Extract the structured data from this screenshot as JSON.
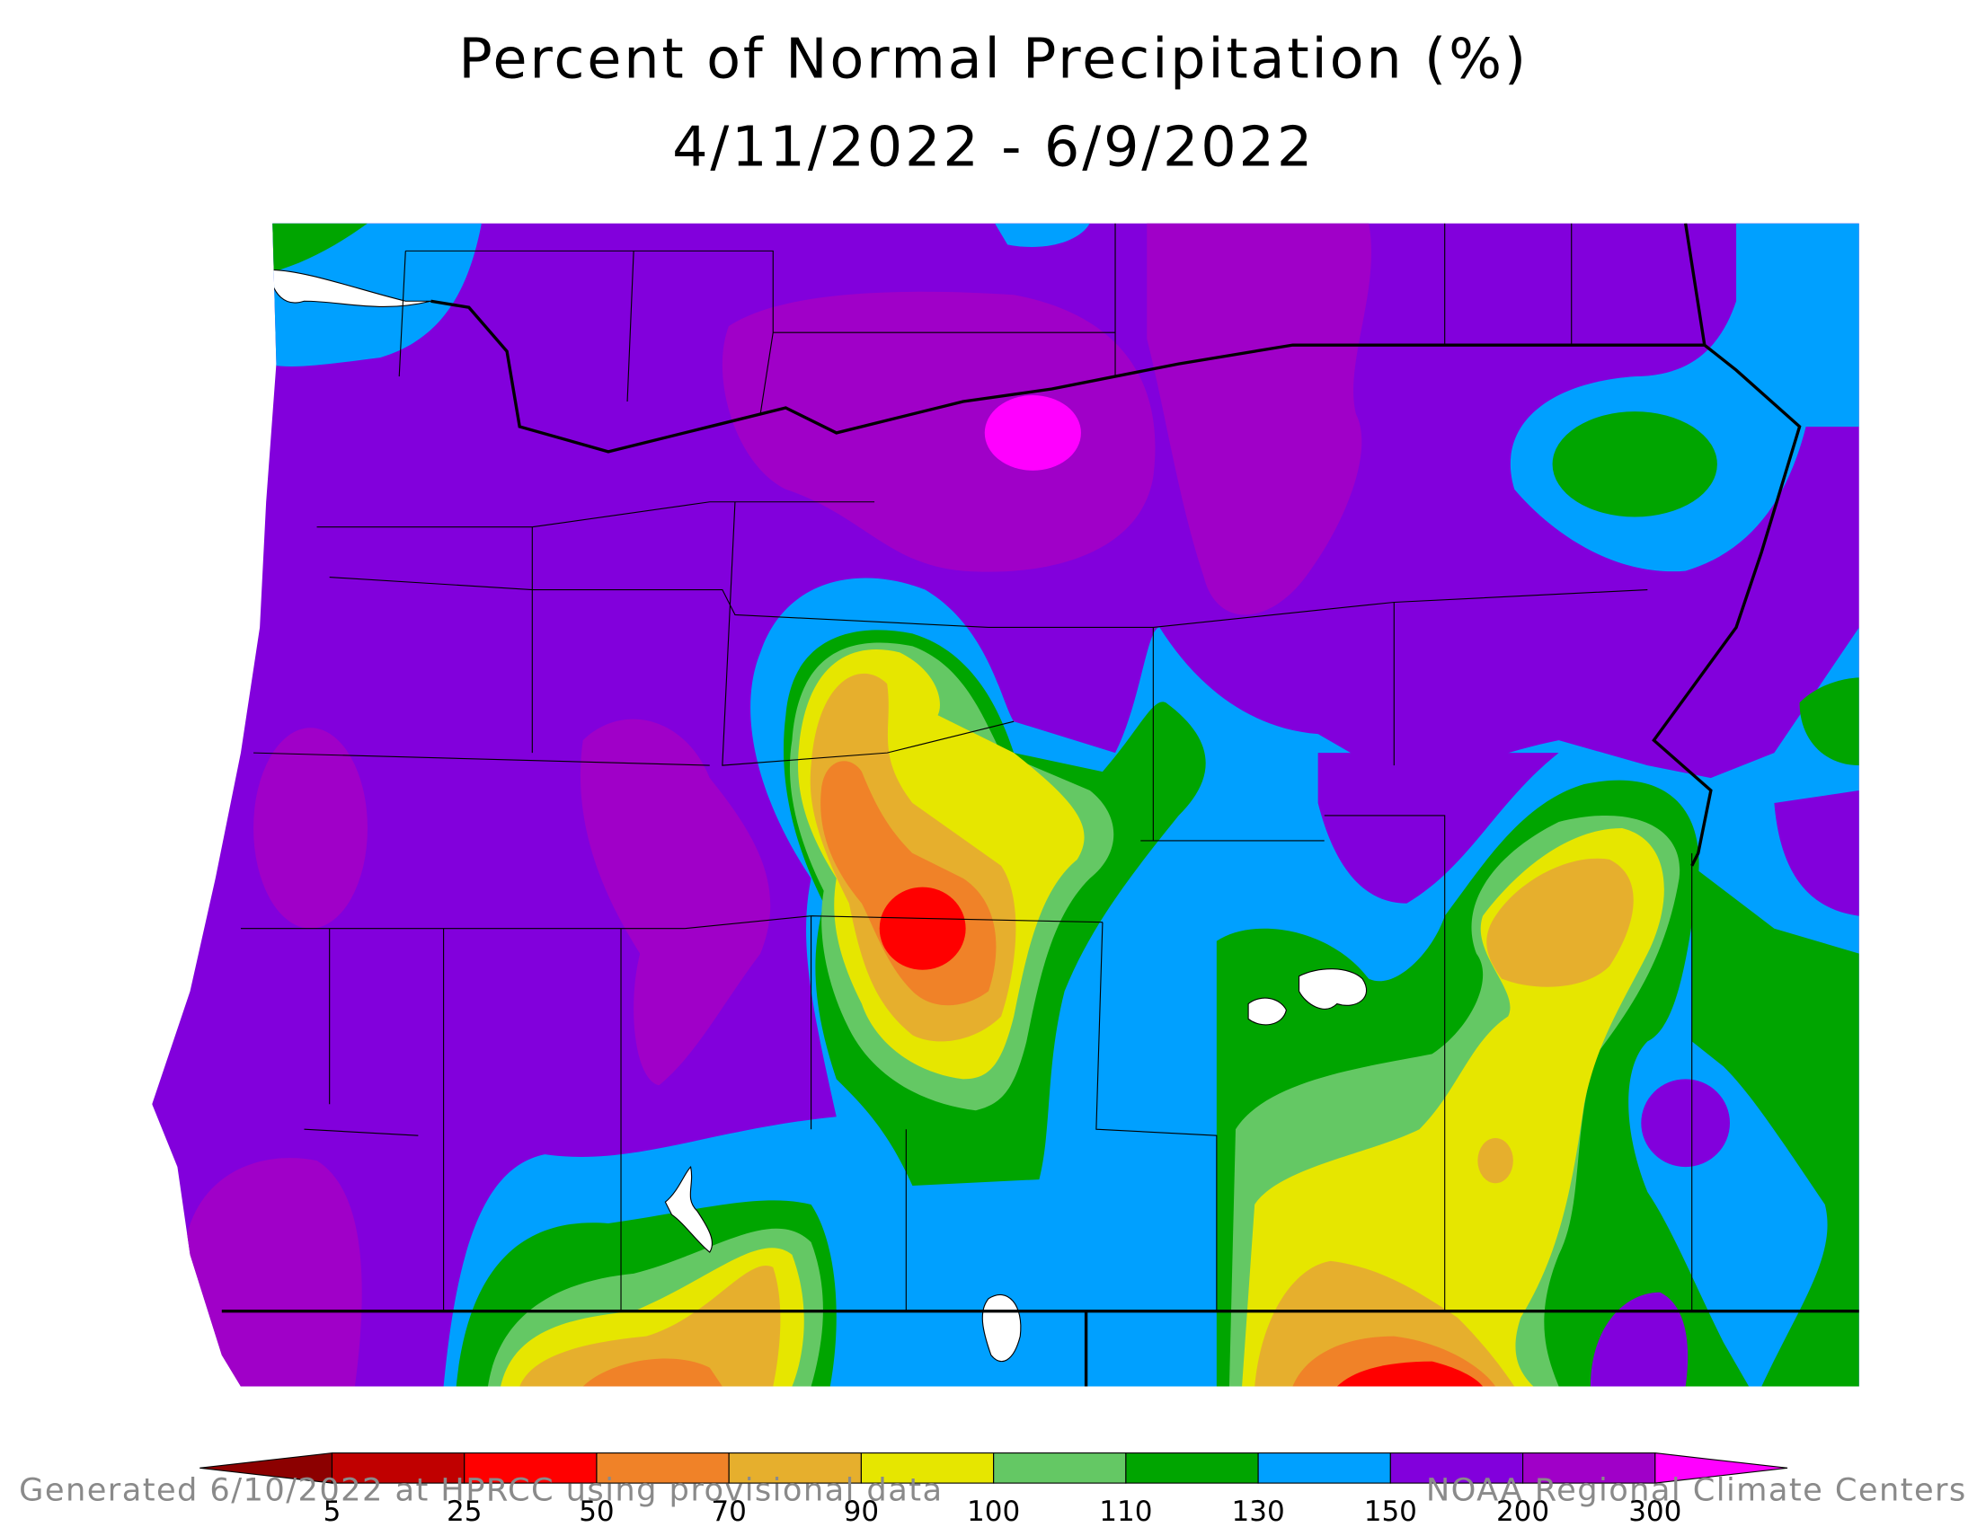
{
  "title": "Percent of Normal Precipitation (%)",
  "subtitle": "4/11/2022 - 6/9/2022",
  "legend": {
    "ticks": [
      5,
      25,
      50,
      70,
      90,
      100,
      110,
      130,
      150,
      200,
      300
    ],
    "colors": [
      "#8c0000",
      "#c00000",
      "#ff0000",
      "#f08228",
      "#e6af2d",
      "#e6e600",
      "#64c864",
      "#00a500",
      "#00a0ff",
      "#8200dc",
      "#a000c8",
      "#ff00ff"
    ]
  },
  "footer": {
    "left": "Generated 6/10/2022 at HPRCC using provisional data",
    "right": "NOAA Regional Climate Centers"
  }
}
